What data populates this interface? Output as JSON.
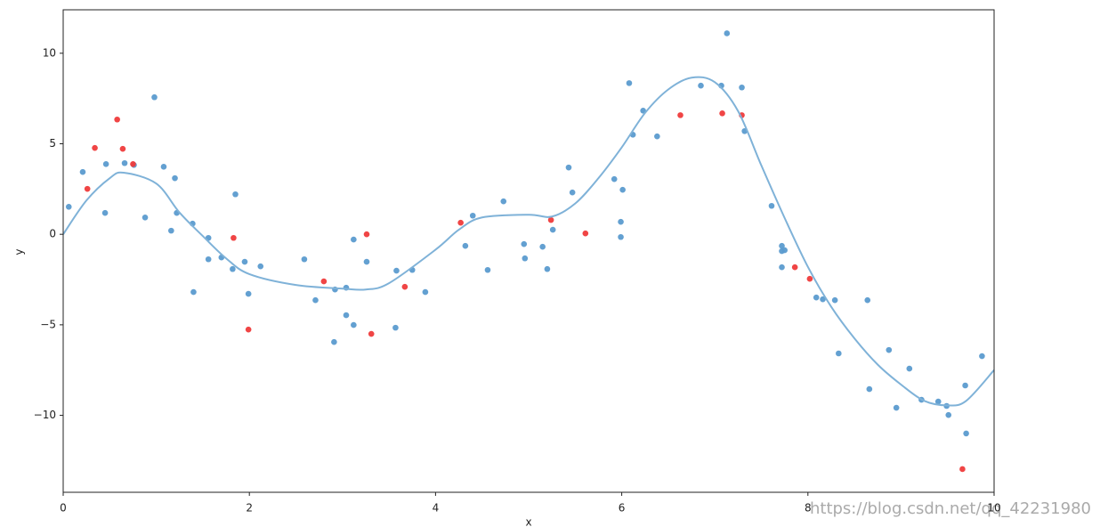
{
  "chart_data": {
    "type": "scatter",
    "x_label": "x",
    "y_label": "y",
    "xlim": [
      0,
      10
    ],
    "ylim": [
      -14.25,
      12.4
    ],
    "xticks": [
      0,
      2,
      4,
      6,
      8,
      10
    ],
    "yticks": [
      {
        "value": -10,
        "label": "−10"
      },
      {
        "value": -5,
        "label": "−5"
      },
      0,
      5,
      10
    ],
    "watermark": "https://blog.csdn.net/qq_42231980",
    "series": [
      {
        "type": "scatter",
        "color": "#5b9bcf",
        "x": [
          0.06,
          0.21,
          0.46,
          0.45,
          0.66,
          0.76,
          0.88,
          0.98,
          1.08,
          1.16,
          1.2,
          1.22,
          1.39,
          1.4,
          1.56,
          1.56,
          1.7,
          1.82,
          1.85,
          1.95,
          1.99,
          2.12,
          2.59,
          2.71,
          2.92,
          2.91,
          3.04,
          3.04,
          3.12,
          3.12,
          3.26,
          3.58,
          3.57,
          3.75,
          3.89,
          4.32,
          4.4,
          4.56,
          4.73,
          4.95,
          4.96,
          5.15,
          5.2,
          5.26,
          5.43,
          5.47,
          5.92,
          5.99,
          5.99,
          6.01,
          6.08,
          6.12,
          6.23,
          6.38,
          6.85,
          7.07,
          7.13,
          7.29,
          7.32,
          7.61,
          7.72,
          7.72,
          7.75,
          7.72,
          8.09,
          8.16,
          8.29,
          8.33,
          8.64,
          8.66,
          8.87,
          8.95,
          9.09,
          9.22,
          9.4,
          9.49,
          9.51,
          9.69,
          9.7,
          9.87
        ],
        "values": [
          1.52,
          3.44,
          3.88,
          1.18,
          3.93,
          3.83,
          0.93,
          7.57,
          3.73,
          0.2,
          3.1,
          1.18,
          0.59,
          -3.19,
          -0.2,
          -1.38,
          -1.28,
          -1.92,
          2.21,
          -1.52,
          -3.29,
          -1.77,
          -1.38,
          -3.64,
          -3.05,
          -5.95,
          -2.95,
          -4.47,
          -0.29,
          -5.01,
          -1.52,
          -2.01,
          -5.16,
          -1.97,
          -3.19,
          -0.64,
          1.03,
          -1.97,
          1.82,
          -0.54,
          -1.33,
          -0.69,
          -1.92,
          0.25,
          3.69,
          2.31,
          3.05,
          0.69,
          -0.15,
          2.46,
          8.35,
          5.5,
          6.83,
          5.41,
          8.21,
          8.21,
          11.1,
          8.11,
          5.7,
          1.57,
          -0.64,
          -0.93,
          -0.88,
          -1.82,
          -3.49,
          -3.59,
          -3.64,
          -6.58,
          -3.64,
          -8.55,
          -6.39,
          -9.58,
          -7.42,
          -9.14,
          -9.24,
          -9.48,
          -9.98,
          -8.35,
          -11.0,
          -6.73
        ]
      },
      {
        "type": "scatter",
        "color": "#ef3b3b",
        "x": [
          0.26,
          0.34,
          0.58,
          0.64,
          0.75,
          1.83,
          1.99,
          2.8,
          3.26,
          3.31,
          3.67,
          4.27,
          5.24,
          5.61,
          6.63,
          7.08,
          7.29,
          7.86,
          8.02,
          9.66
        ],
        "values": [
          2.51,
          4.77,
          6.34,
          4.72,
          3.88,
          -0.2,
          -5.26,
          -2.6,
          0,
          -5.5,
          -2.9,
          0.64,
          0.79,
          0.05,
          6.58,
          6.68,
          6.58,
          -1.82,
          -2.46,
          -12.97
        ]
      },
      {
        "type": "line",
        "color": "#7fb2d8",
        "x": [
          0,
          0.25,
          0.5,
          0.65,
          1.0,
          1.25,
          1.5,
          1.75,
          2.0,
          2.5,
          3.0,
          3.25,
          3.5,
          4.0,
          4.25,
          4.5,
          5.0,
          5.25,
          5.5,
          5.75,
          6.0,
          6.25,
          6.5,
          6.75,
          7.0,
          7.25,
          7.5,
          7.75,
          8.0,
          8.25,
          8.5,
          8.75,
          9.0,
          9.25,
          9.5,
          9.7,
          10
        ],
        "values": [
          0,
          1.87,
          3.1,
          3.4,
          2.8,
          1.2,
          -0.1,
          -1.33,
          -2.2,
          -2.8,
          -3.0,
          -3.05,
          -2.7,
          -0.85,
          0.25,
          0.93,
          1.08,
          0.98,
          1.7,
          3.1,
          4.8,
          6.7,
          8.0,
          8.65,
          8.4,
          6.8,
          3.8,
          0.9,
          -1.8,
          -4.0,
          -5.75,
          -7.2,
          -8.3,
          -9.2,
          -9.45,
          -9.2,
          -7.5
        ]
      }
    ]
  }
}
